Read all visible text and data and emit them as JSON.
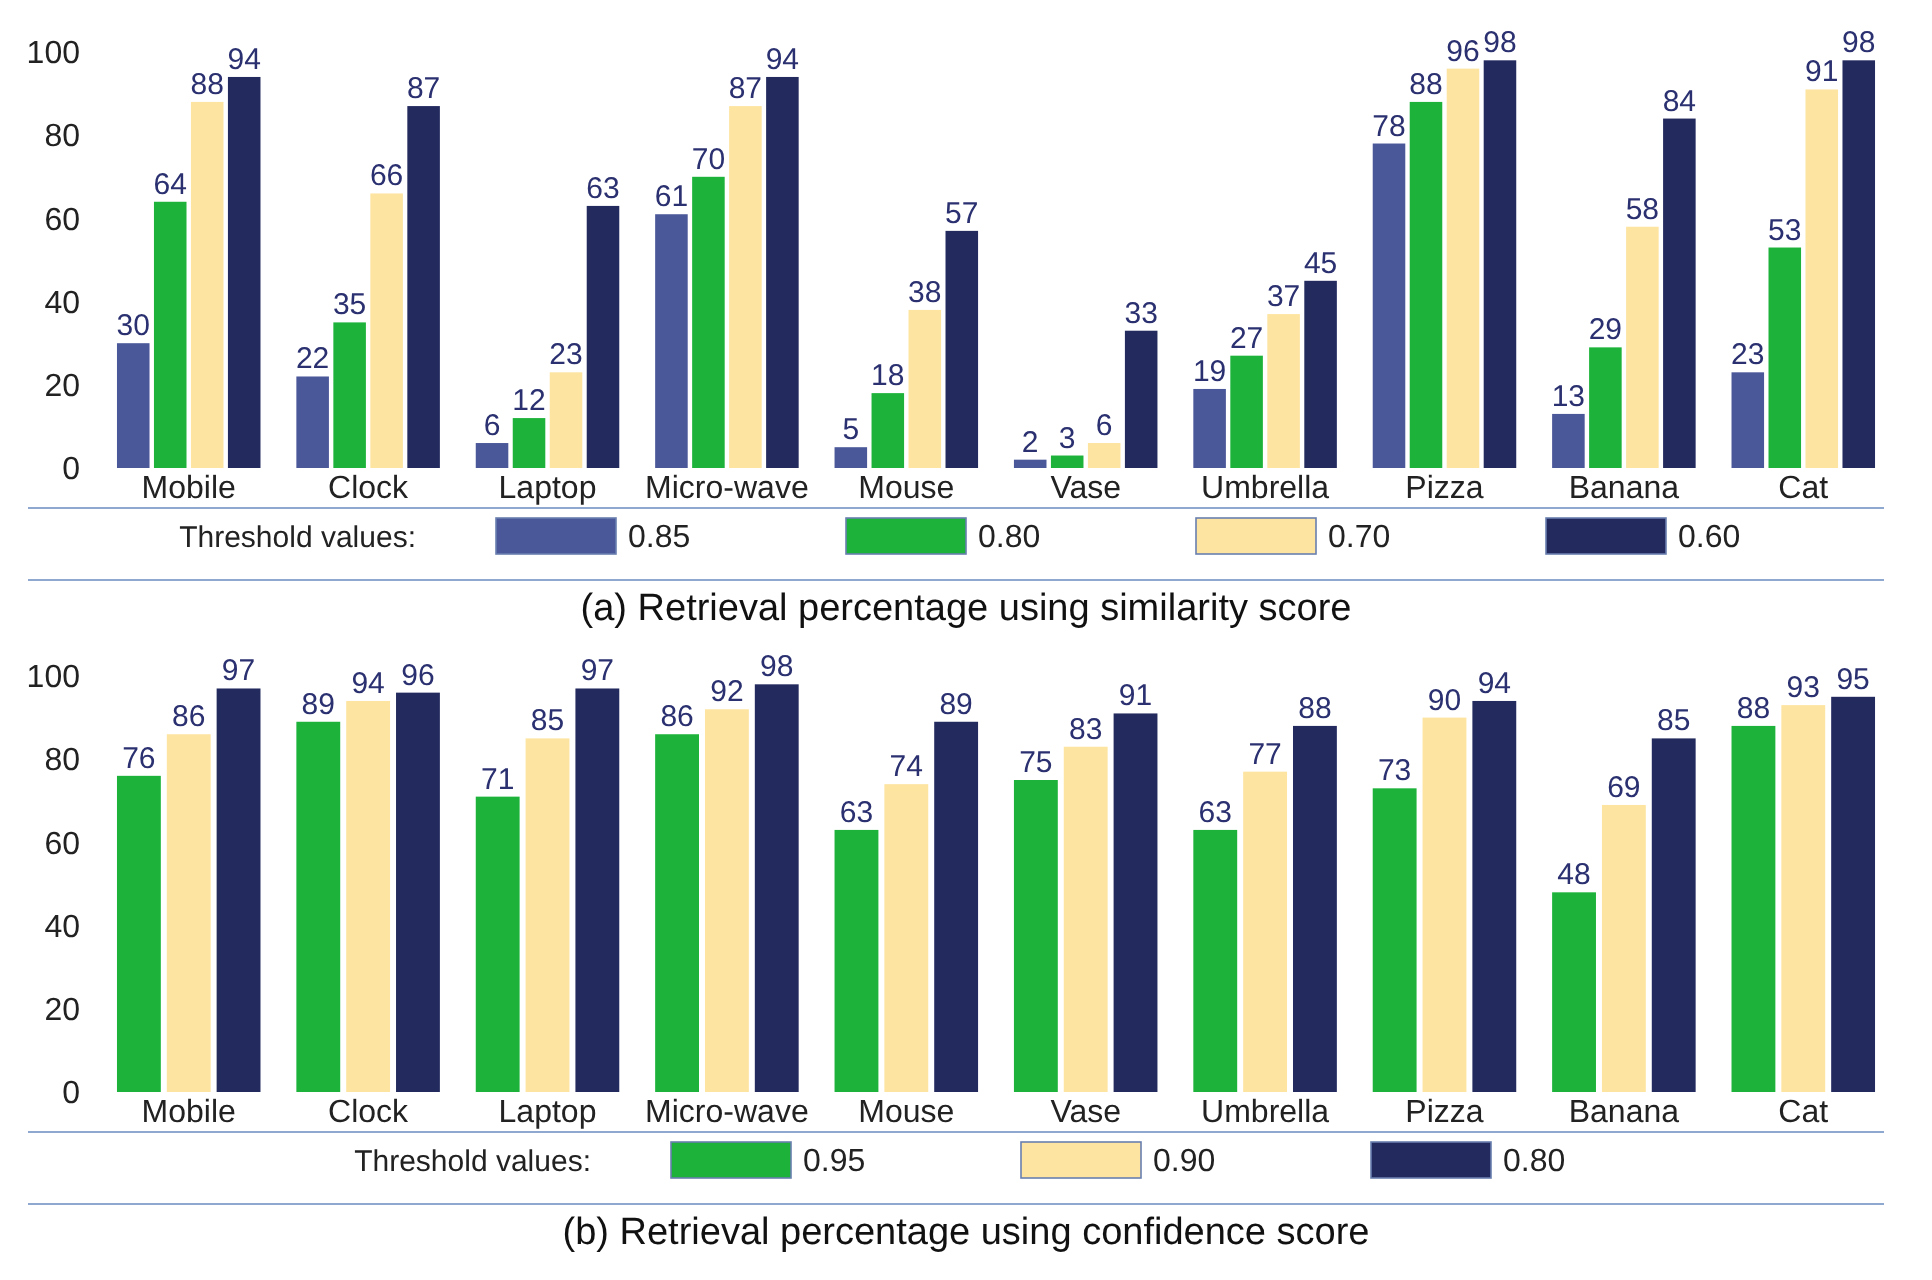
{
  "chart_data": [
    {
      "type": "bar",
      "title": "(a) Retrieval percentage using similarity score",
      "legend_title": "Threshold values:",
      "categories": [
        "Mobile",
        "Clock",
        "Laptop",
        "Micro-wave",
        "Mouse",
        "Vase",
        "Umbrella",
        "Pizza",
        "Banana",
        "Cat"
      ],
      "series": [
        {
          "name": "0.85",
          "color": "#4a5799",
          "values": [
            30,
            22,
            6,
            61,
            5,
            2,
            19,
            78,
            13,
            23
          ]
        },
        {
          "name": "0.80",
          "color": "#1db33a",
          "values": [
            64,
            35,
            12,
            70,
            18,
            3,
            27,
            88,
            29,
            53
          ]
        },
        {
          "name": "0.70",
          "color": "#fde4a0",
          "values": [
            88,
            66,
            23,
            87,
            38,
            6,
            37,
            96,
            58,
            91
          ]
        },
        {
          "name": "0.60",
          "color": "#232a5e",
          "values": [
            94,
            87,
            63,
            94,
            57,
            33,
            45,
            98,
            84,
            98
          ]
        }
      ],
      "ylim": [
        0,
        100
      ],
      "yticks": [
        0,
        20,
        40,
        60,
        80,
        100
      ],
      "data_labels": true,
      "legend": "bottom"
    },
    {
      "type": "bar",
      "title": "(b) Retrieval percentage using confidence score",
      "legend_title": "Threshold values:",
      "categories": [
        "Mobile",
        "Clock",
        "Laptop",
        "Micro-wave",
        "Mouse",
        "Vase",
        "Umbrella",
        "Pizza",
        "Banana",
        "Cat"
      ],
      "series": [
        {
          "name": "0.95",
          "color": "#1db33a",
          "values": [
            76,
            89,
            71,
            86,
            63,
            75,
            63,
            73,
            48,
            88
          ]
        },
        {
          "name": "0.90",
          "color": "#fde4a0",
          "values": [
            86,
            94,
            85,
            92,
            74,
            83,
            77,
            90,
            69,
            93
          ]
        },
        {
          "name": "0.80",
          "color": "#232a5e",
          "values": [
            97,
            96,
            97,
            98,
            89,
            91,
            88,
            94,
            85,
            95
          ]
        }
      ],
      "ylim": [
        0,
        100
      ],
      "yticks": [
        0,
        20,
        40,
        60,
        80,
        100
      ],
      "data_labels": true,
      "legend": "bottom"
    }
  ]
}
